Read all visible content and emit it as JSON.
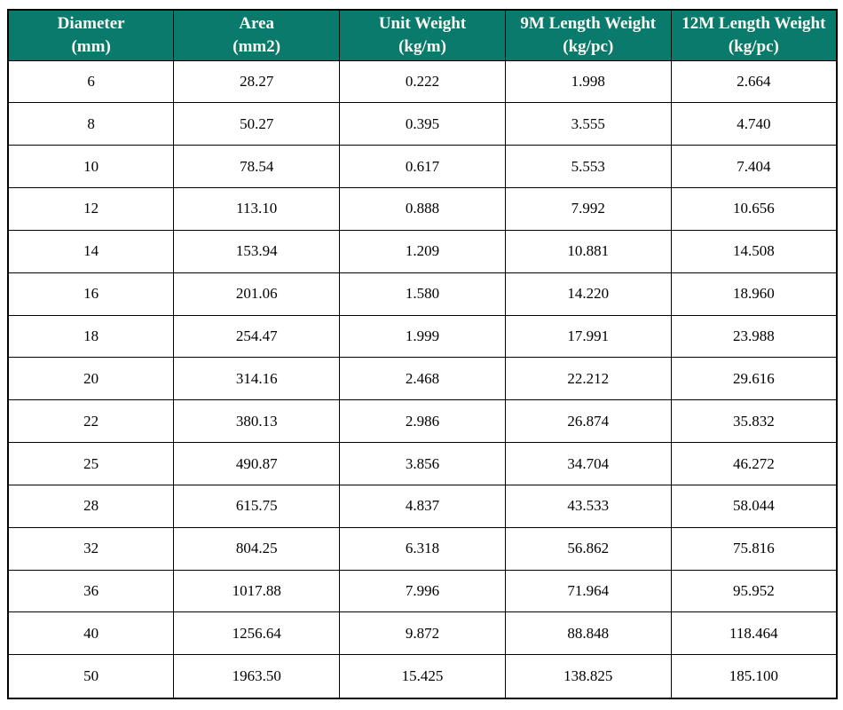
{
  "page": {
    "background_color": "#ffffff"
  },
  "table": {
    "header_bg_color": "#0a7a6c",
    "header_text_color": "#fbf9f2",
    "grid_color": "#000000",
    "headers": [
      {
        "title": "Diameter",
        "unit": "(mm)"
      },
      {
        "title": "Area",
        "unit": "(mm2)"
      },
      {
        "title": "Unit Weight",
        "unit": "(kg/m)"
      },
      {
        "title": "9M Length Weight",
        "unit": "(kg/pc)"
      },
      {
        "title": "12M Length Weight",
        "unit": "(kg/pc)"
      }
    ],
    "rows": [
      [
        "6",
        "28.27",
        "0.222",
        "1.998",
        "2.664"
      ],
      [
        "8",
        "50.27",
        "0.395",
        "3.555",
        "4.740"
      ],
      [
        "10",
        "78.54",
        "0.617",
        "5.553",
        "7.404"
      ],
      [
        "12",
        "113.10",
        "0.888",
        "7.992",
        "10.656"
      ],
      [
        "14",
        "153.94",
        "1.209",
        "10.881",
        "14.508"
      ],
      [
        "16",
        "201.06",
        "1.580",
        "14.220",
        "18.960"
      ],
      [
        "18",
        "254.47",
        "1.999",
        "17.991",
        "23.988"
      ],
      [
        "20",
        "314.16",
        "2.468",
        "22.212",
        "29.616"
      ],
      [
        "22",
        "380.13",
        "2.986",
        "26.874",
        "35.832"
      ],
      [
        "25",
        "490.87",
        "3.856",
        "34.704",
        "46.272"
      ],
      [
        "28",
        "615.75",
        "4.837",
        "43.533",
        "58.044"
      ],
      [
        "32",
        "804.25",
        "6.318",
        "56.862",
        "75.816"
      ],
      [
        "36",
        "1017.88",
        "7.996",
        "71.964",
        "95.952"
      ],
      [
        "40",
        "1256.64",
        "9.872",
        "88.848",
        "118.464"
      ],
      [
        "50",
        "1963.50",
        "15.425",
        "138.825",
        "185.100"
      ]
    ]
  }
}
